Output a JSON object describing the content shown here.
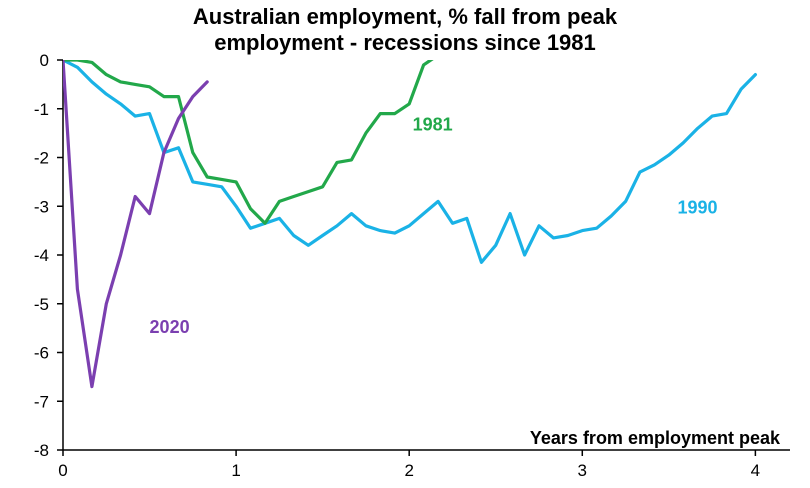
{
  "chart_data": {
    "type": "line",
    "title_lines": [
      "Australian employment, % fall from peak",
      "employment - recessions since 1981"
    ],
    "xlabel": "Years from employment peak",
    "ylabel": "",
    "xlim": [
      0,
      4.2
    ],
    "ylim": [
      -8,
      0
    ],
    "xticks": [
      0,
      1,
      2,
      3,
      4
    ],
    "yticks": [
      0,
      -1,
      -2,
      -3,
      -4,
      -5,
      -6,
      -7,
      -8
    ],
    "grid": false,
    "legend": "none",
    "series": [
      {
        "name": "1990",
        "color": "#1ab2e6",
        "label_pos": [
          3.55,
          -3.15
        ],
        "x": [
          0,
          0.083,
          0.167,
          0.25,
          0.333,
          0.417,
          0.5,
          0.583,
          0.667,
          0.75,
          0.833,
          0.917,
          1.0,
          1.083,
          1.167,
          1.25,
          1.333,
          1.417,
          1.5,
          1.583,
          1.667,
          1.75,
          1.833,
          1.917,
          2.0,
          2.083,
          2.167,
          2.25,
          2.333,
          2.417,
          2.5,
          2.583,
          2.667,
          2.75,
          2.833,
          2.917,
          3.0,
          3.083,
          3.167,
          3.25,
          3.333,
          3.417,
          3.5,
          3.583,
          3.667,
          3.75,
          3.833,
          3.917,
          4.0
        ],
        "values": [
          0,
          -0.15,
          -0.45,
          -0.7,
          -0.9,
          -1.15,
          -1.1,
          -1.9,
          -1.8,
          -2.5,
          -2.55,
          -2.6,
          -3.0,
          -3.45,
          -3.35,
          -3.25,
          -3.6,
          -3.8,
          -3.6,
          -3.4,
          -3.15,
          -3.4,
          -3.5,
          -3.55,
          -3.4,
          -3.15,
          -2.9,
          -3.35,
          -3.25,
          -4.15,
          -3.8,
          -3.15,
          -4.0,
          -3.4,
          -3.65,
          -3.6,
          -3.5,
          -3.45,
          -3.2,
          -2.9,
          -2.3,
          -2.15,
          -1.95,
          -1.7,
          -1.4,
          -1.15,
          -1.1,
          -0.6,
          -0.3
        ]
      },
      {
        "name": "1981",
        "color": "#22a84a",
        "label_pos": [
          2.02,
          -1.45
        ],
        "x": [
          0,
          0.083,
          0.167,
          0.25,
          0.333,
          0.417,
          0.5,
          0.583,
          0.667,
          0.75,
          0.833,
          0.917,
          1.0,
          1.083,
          1.167,
          1.25,
          1.333,
          1.417,
          1.5,
          1.583,
          1.667,
          1.75,
          1.833,
          1.917,
          2.0,
          2.083,
          2.167
        ],
        "values": [
          0,
          0,
          -0.05,
          -0.3,
          -0.45,
          -0.5,
          -0.55,
          -0.75,
          -0.75,
          -1.9,
          -2.4,
          -2.45,
          -2.5,
          -3.05,
          -3.35,
          -2.9,
          -2.8,
          -2.7,
          -2.6,
          -2.1,
          -2.05,
          -1.5,
          -1.1,
          -1.1,
          -0.9,
          -0.1,
          0.1
        ]
      },
      {
        "name": "2020",
        "color": "#7b3fb0",
        "label_pos": [
          0.5,
          -5.6
        ],
        "x": [
          0,
          0.083,
          0.167,
          0.25,
          0.333,
          0.417,
          0.5,
          0.583,
          0.667,
          0.75,
          0.833
        ],
        "values": [
          0,
          -4.7,
          -6.7,
          -5.0,
          -4.0,
          -2.8,
          -3.15,
          -1.9,
          -1.2,
          -0.75,
          -0.45
        ]
      }
    ]
  }
}
